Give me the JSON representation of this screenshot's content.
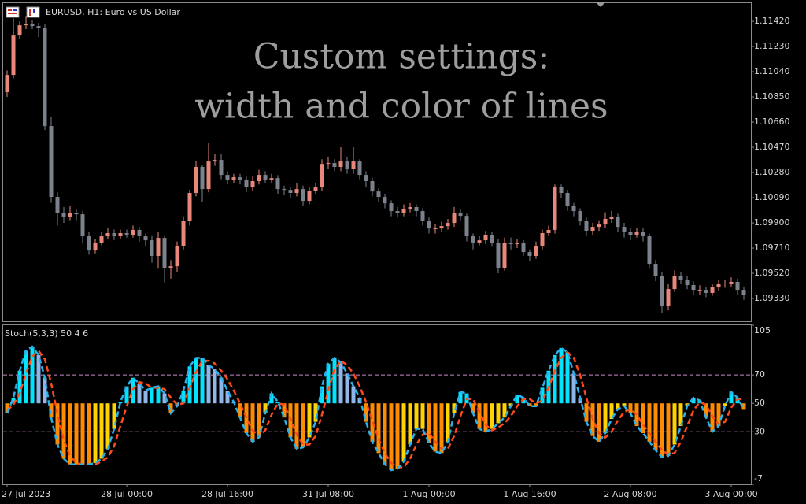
{
  "chart_data": [
    {
      "type": "candlestick",
      "title": "EURUSD, H1:  Euro vs US Dollar",
      "annotation": [
        "Custom settings:",
        "width and color of lines"
      ],
      "up_color": "#e8877a",
      "down_color": "#7c828c",
      "ylim": [
        1.09158,
        1.11557
      ],
      "yticks": [
        {
          "value": 1.1142,
          "label": "1.11420"
        },
        {
          "value": 1.1123,
          "label": "1.11230"
        },
        {
          "value": 1.1104,
          "label": "1.11040"
        },
        {
          "value": 1.1085,
          "label": "1.10850"
        },
        {
          "value": 1.1066,
          "label": "1.10660"
        },
        {
          "value": 1.1047,
          "label": "1.10470"
        },
        {
          "value": 1.1028,
          "label": "1.10280"
        },
        {
          "value": 1.1009,
          "label": "1.10090"
        },
        {
          "value": 1.099,
          "label": "1.09900"
        },
        {
          "value": 1.0971,
          "label": "1.09710"
        },
        {
          "value": 1.0952,
          "label": "1.09520"
        },
        {
          "value": 1.0933,
          "label": "1.09330"
        }
      ],
      "open": [
        1.10886,
        1.11016,
        1.11313,
        1.1139,
        1.11402,
        1.11384,
        1.11372,
        1.1063,
        1.10096,
        1.09977,
        1.09948,
        1.09977,
        1.09965,
        1.09799,
        1.09692,
        1.09752,
        1.09799,
        1.09823,
        1.09799,
        1.09823,
        1.09811,
        1.09847,
        1.09799,
        1.09769,
        1.09651,
        1.09787,
        1.09562,
        1.09573,
        1.09728,
        1.09918,
        1.10126,
        1.10322,
        1.10155,
        1.10363,
        1.10375,
        1.10262,
        1.10227,
        1.10244,
        1.10227,
        1.10167,
        1.10215,
        1.10262,
        1.10227,
        1.10238,
        1.10155,
        1.10149,
        1.10126,
        1.10155,
        1.10066,
        1.10143,
        1.10167,
        1.10345,
        1.10351,
        1.10322,
        1.10363,
        1.10304,
        1.10363,
        1.10262,
        1.10215,
        1.10137,
        1.10096,
        1.10048,
        1.09989,
        1.09977,
        1.10007,
        1.10019,
        1.09989,
        1.09918,
        1.09858,
        1.09858,
        1.09876,
        1.099,
        1.09977,
        1.09953,
        1.09799,
        1.09752,
        1.09769,
        1.09811,
        1.09752,
        1.09562,
        1.09752,
        1.0974,
        1.09752,
        1.0968,
        1.09651,
        1.09728,
        1.09823,
        1.09847,
        1.10173,
        1.10126,
        1.10025,
        1.09989,
        1.09918,
        1.09841,
        1.0987,
        1.09888,
        1.0993,
        1.09948,
        1.0987,
        1.09829,
        1.09811,
        1.09829,
        1.09799,
        1.09591,
        1.09502,
        1.09276,
        1.09401,
        1.09502,
        1.09473,
        1.09431,
        1.09395,
        1.09395,
        1.09372,
        1.09413,
        1.09443,
        1.09443,
        1.09455,
        1.09395
      ],
      "high": [
        1.1105,
        1.1144,
        1.1142,
        1.1146,
        1.1143,
        1.1141,
        1.114,
        1.107,
        1.1013,
        1.1002,
        1.1003,
        1.1,
        1.0999,
        1.0983,
        1.0978,
        1.0983,
        1.0986,
        1.0985,
        1.0985,
        1.0985,
        1.0988,
        1.0987,
        1.0982,
        1.098,
        1.0983,
        1.098,
        1.0962,
        1.0976,
        1.0995,
        1.1015,
        1.1037,
        1.1034,
        1.105,
        1.1042,
        1.1042,
        1.1029,
        1.1027,
        1.1027,
        1.1025,
        1.1025,
        1.103,
        1.1029,
        1.1027,
        1.1026,
        1.1018,
        1.1017,
        1.102,
        1.1018,
        1.1017,
        1.102,
        1.1038,
        1.104,
        1.1038,
        1.1047,
        1.104,
        1.1047,
        1.1038,
        1.1029,
        1.1024,
        1.1016,
        1.1012,
        1.1007,
        1.1002,
        1.1004,
        1.1005,
        1.1004,
        1.1001,
        1.0994,
        1.0989,
        1.0991,
        1.0993,
        1.1002,
        1.1,
        1.0997,
        1.0982,
        1.098,
        1.0984,
        1.0983,
        1.0978,
        1.0979,
        1.0979,
        1.0978,
        1.0977,
        1.097,
        1.0976,
        1.0985,
        1.0988,
        1.1019,
        1.1019,
        1.1015,
        1.1005,
        1.1001,
        1.0994,
        1.099,
        1.0992,
        1.0998,
        1.0999,
        1.0997,
        1.099,
        1.0986,
        1.0986,
        1.0986,
        1.0982,
        1.0962,
        1.0953,
        1.0944,
        1.0954,
        1.0953,
        1.095,
        1.0946,
        1.0943,
        1.0942,
        1.0944,
        1.0947,
        1.0947,
        1.0949,
        1.0948,
        1.0942
      ],
      "low": [
        1.1085,
        1.1099,
        1.1129,
        1.1136,
        1.1136,
        1.113,
        1.106,
        1.1005,
        1.0988,
        1.099,
        1.0992,
        1.0992,
        1.0975,
        1.0966,
        1.0967,
        1.0973,
        1.0978,
        1.0977,
        1.0978,
        1.0979,
        1.0979,
        1.0976,
        1.0972,
        1.096,
        1.0956,
        1.0945,
        1.0948,
        1.0953,
        1.097,
        1.0988,
        1.101,
        1.1006,
        1.1013,
        1.1033,
        1.1023,
        1.1019,
        1.102,
        1.1019,
        1.1013,
        1.1014,
        1.1019,
        1.102,
        1.102,
        1.1012,
        1.1011,
        1.1009,
        1.101,
        1.1003,
        1.1004,
        1.1012,
        1.1014,
        1.1031,
        1.1029,
        1.1029,
        1.1027,
        1.1027,
        1.1023,
        1.1017,
        1.101,
        1.1006,
        1.1001,
        1.0995,
        1.0994,
        1.0995,
        1.0998,
        1.0995,
        1.0988,
        1.0982,
        1.0982,
        1.0983,
        1.0985,
        1.0987,
        1.0992,
        1.0976,
        1.097,
        1.0973,
        1.0974,
        1.0972,
        1.0952,
        1.0954,
        1.097,
        1.0971,
        1.0965,
        1.0961,
        1.0963,
        1.097,
        1.098,
        1.0982,
        1.1009,
        1.0999,
        1.0995,
        1.0988,
        1.098,
        1.0981,
        1.0984,
        1.0986,
        1.099,
        1.0983,
        1.0979,
        1.0977,
        1.0979,
        1.0976,
        1.0956,
        1.0946,
        1.0922,
        1.0924,
        1.0938,
        1.0944,
        1.094,
        1.0936,
        1.0936,
        1.0934,
        1.0935,
        1.0939,
        1.0941,
        1.0942,
        1.0936,
        1.0932
      ],
      "close": [
        1.11016,
        1.11313,
        1.1139,
        1.11402,
        1.11384,
        1.11372,
        1.1063,
        1.10096,
        1.09977,
        1.09948,
        1.09977,
        1.09965,
        1.09799,
        1.09692,
        1.09752,
        1.09799,
        1.09823,
        1.09799,
        1.09823,
        1.09811,
        1.09847,
        1.09799,
        1.09769,
        1.09651,
        1.09787,
        1.09562,
        1.09573,
        1.09728,
        1.09918,
        1.10126,
        1.10322,
        1.10155,
        1.10363,
        1.10375,
        1.10262,
        1.10227,
        1.10244,
        1.10227,
        1.10167,
        1.10215,
        1.10262,
        1.10227,
        1.10238,
        1.10155,
        1.10149,
        1.10126,
        1.10155,
        1.10066,
        1.10143,
        1.10167,
        1.10345,
        1.10351,
        1.10322,
        1.10363,
        1.10304,
        1.10363,
        1.10262,
        1.10215,
        1.10137,
        1.10096,
        1.10048,
        1.09989,
        1.09977,
        1.10007,
        1.10019,
        1.09989,
        1.09918,
        1.09858,
        1.09858,
        1.09876,
        1.099,
        1.09977,
        1.09953,
        1.09799,
        1.09752,
        1.09769,
        1.09811,
        1.09752,
        1.09562,
        1.09752,
        1.0974,
        1.09752,
        1.0968,
        1.09651,
        1.09728,
        1.09823,
        1.09847,
        1.10173,
        1.10126,
        1.10025,
        1.09989,
        1.09918,
        1.09841,
        1.0987,
        1.09888,
        1.0993,
        1.09948,
        1.0987,
        1.09829,
        1.09811,
        1.09829,
        1.09799,
        1.09591,
        1.09502,
        1.09276,
        1.09401,
        1.09502,
        1.09473,
        1.09431,
        1.09395,
        1.09395,
        1.09372,
        1.09413,
        1.09443,
        1.09443,
        1.09455,
        1.09395,
        1.09354
      ]
    },
    {
      "type": "stochastic",
      "title": "Stoch(5,3,3) 50 4 6",
      "ylim": [
        -7,
        105
      ],
      "yticks": [
        105,
        70,
        50,
        30,
        -7
      ],
      "levels": [
        30,
        70
      ],
      "level_color": "#c88ac8",
      "histogram_base": 50,
      "histogram_colors": [
        "#00e5ff",
        "#8fb6e8",
        "#ff8c00",
        "#ffd200"
      ],
      "categories": [
        "27 Jul 2023",
        null,
        null,
        null,
        null,
        null,
        null,
        null,
        null,
        null,
        null,
        null,
        null,
        null,
        null,
        null,
        null,
        null,
        null,
        "28 Jul 00:00",
        null,
        null,
        null,
        null,
        null,
        null,
        null,
        null,
        null,
        null,
        null,
        null,
        null,
        null,
        null,
        "28 Jul 16:00",
        null,
        null,
        null,
        null,
        null,
        null,
        null,
        null,
        null,
        null,
        null,
        null,
        null,
        null,
        null,
        "31 Jul 08:00",
        null,
        null,
        null,
        null,
        null,
        null,
        null,
        null,
        null,
        null,
        null,
        null,
        null,
        null,
        null,
        "1 Aug 00:00",
        null,
        null,
        null,
        null,
        null,
        null,
        null,
        null,
        null,
        null,
        null,
        null,
        null,
        null,
        null,
        "1 Aug 16:00",
        null,
        null,
        null,
        null,
        null,
        null,
        null,
        null,
        null,
        null,
        null,
        null,
        null,
        null,
        null,
        "2 Aug 08:00",
        null,
        null,
        null,
        null,
        null,
        null,
        null,
        null,
        null,
        null,
        null,
        null,
        null,
        null,
        null,
        "3 Aug 00:00",
        null,
        null
      ],
      "series": [
        {
          "color": "#2ab0ea",
          "values": [
            43,
            54,
            73,
            87,
            90,
            84,
            68,
            40,
            21,
            11,
            7,
            7,
            7,
            7,
            8,
            11,
            18,
            32,
            51,
            62,
            68,
            64,
            59,
            61,
            62,
            57,
            43,
            48,
            59,
            76,
            82,
            82,
            77,
            74,
            68,
            59,
            51,
            40,
            29,
            23,
            26,
            43,
            57,
            51,
            40,
            26,
            18,
            19,
            26,
            37,
            62,
            78,
            82,
            79,
            71,
            62,
            54,
            37,
            23,
            15,
            7,
            3,
            4,
            9,
            21,
            32,
            32,
            22,
            16,
            15,
            23,
            43,
            58,
            57,
            43,
            32,
            30,
            32,
            36,
            40,
            48,
            56,
            54,
            48,
            48,
            61,
            73,
            84,
            89,
            86,
            71,
            54,
            37,
            27,
            23,
            29,
            39,
            46,
            48,
            43,
            34,
            29,
            23,
            17,
            12,
            13,
            21,
            34,
            48,
            54,
            52,
            40,
            30,
            34,
            48,
            58,
            54,
            46
          ]
        },
        {
          "color": "#ff4a1a",
          "values": [
            45,
            49,
            57,
            71,
            83,
            87,
            81,
            64,
            43,
            24,
            13,
            8,
            7,
            7,
            7,
            9,
            12,
            20,
            34,
            48,
            60,
            65,
            64,
            61,
            61,
            60,
            54,
            49,
            50,
            61,
            72,
            80,
            80,
            78,
            73,
            67,
            59,
            50,
            40,
            31,
            26,
            31,
            42,
            50,
            49,
            39,
            28,
            21,
            21,
            27,
            42,
            59,
            74,
            80,
            77,
            71,
            62,
            51,
            38,
            25,
            15,
            8,
            5,
            5,
            11,
            21,
            28,
            29,
            23,
            18,
            18,
            27,
            41,
            53,
            53,
            44,
            35,
            31,
            33,
            36,
            41,
            48,
            53,
            53,
            50,
            52,
            61,
            73,
            82,
            86,
            82,
            70,
            54,
            39,
            29,
            26,
            30,
            38,
            44,
            46,
            42,
            35,
            29,
            23,
            17,
            14,
            15,
            23,
            34,
            45,
            51,
            49,
            41,
            35,
            37,
            47,
            53,
            53
          ]
        }
      ]
    }
  ]
}
